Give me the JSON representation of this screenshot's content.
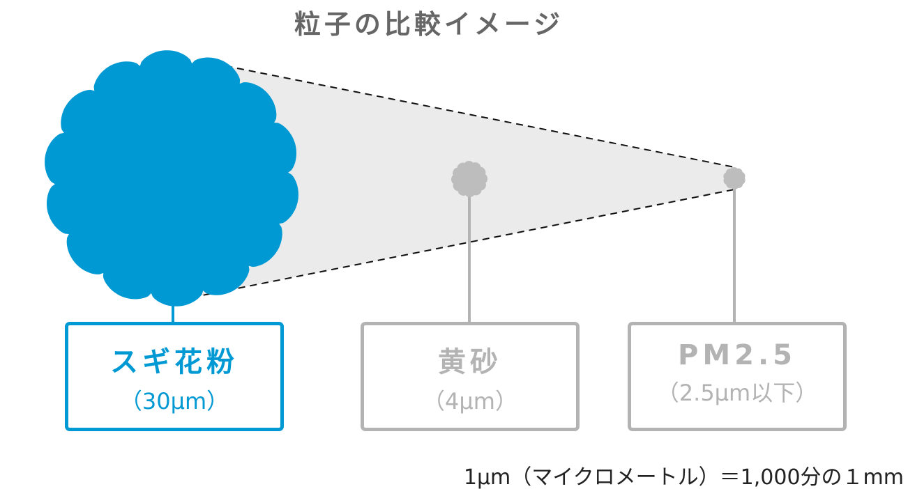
{
  "title": "粒子の比較イメージ",
  "colors": {
    "pollen": "#0099d3",
    "gray": "#b3b3b3",
    "cone": "#ebebeb",
    "title": "#666666"
  },
  "particles": [
    {
      "name": "スギ花粉",
      "size": "（30μm）"
    },
    {
      "name": "黄砂",
      "size": "（4μm）"
    },
    {
      "name": "PM2.5",
      "size": "（2.5μm以下）"
    }
  ],
  "note": "1μm（マイクロメートル）＝1,000分の１mm"
}
